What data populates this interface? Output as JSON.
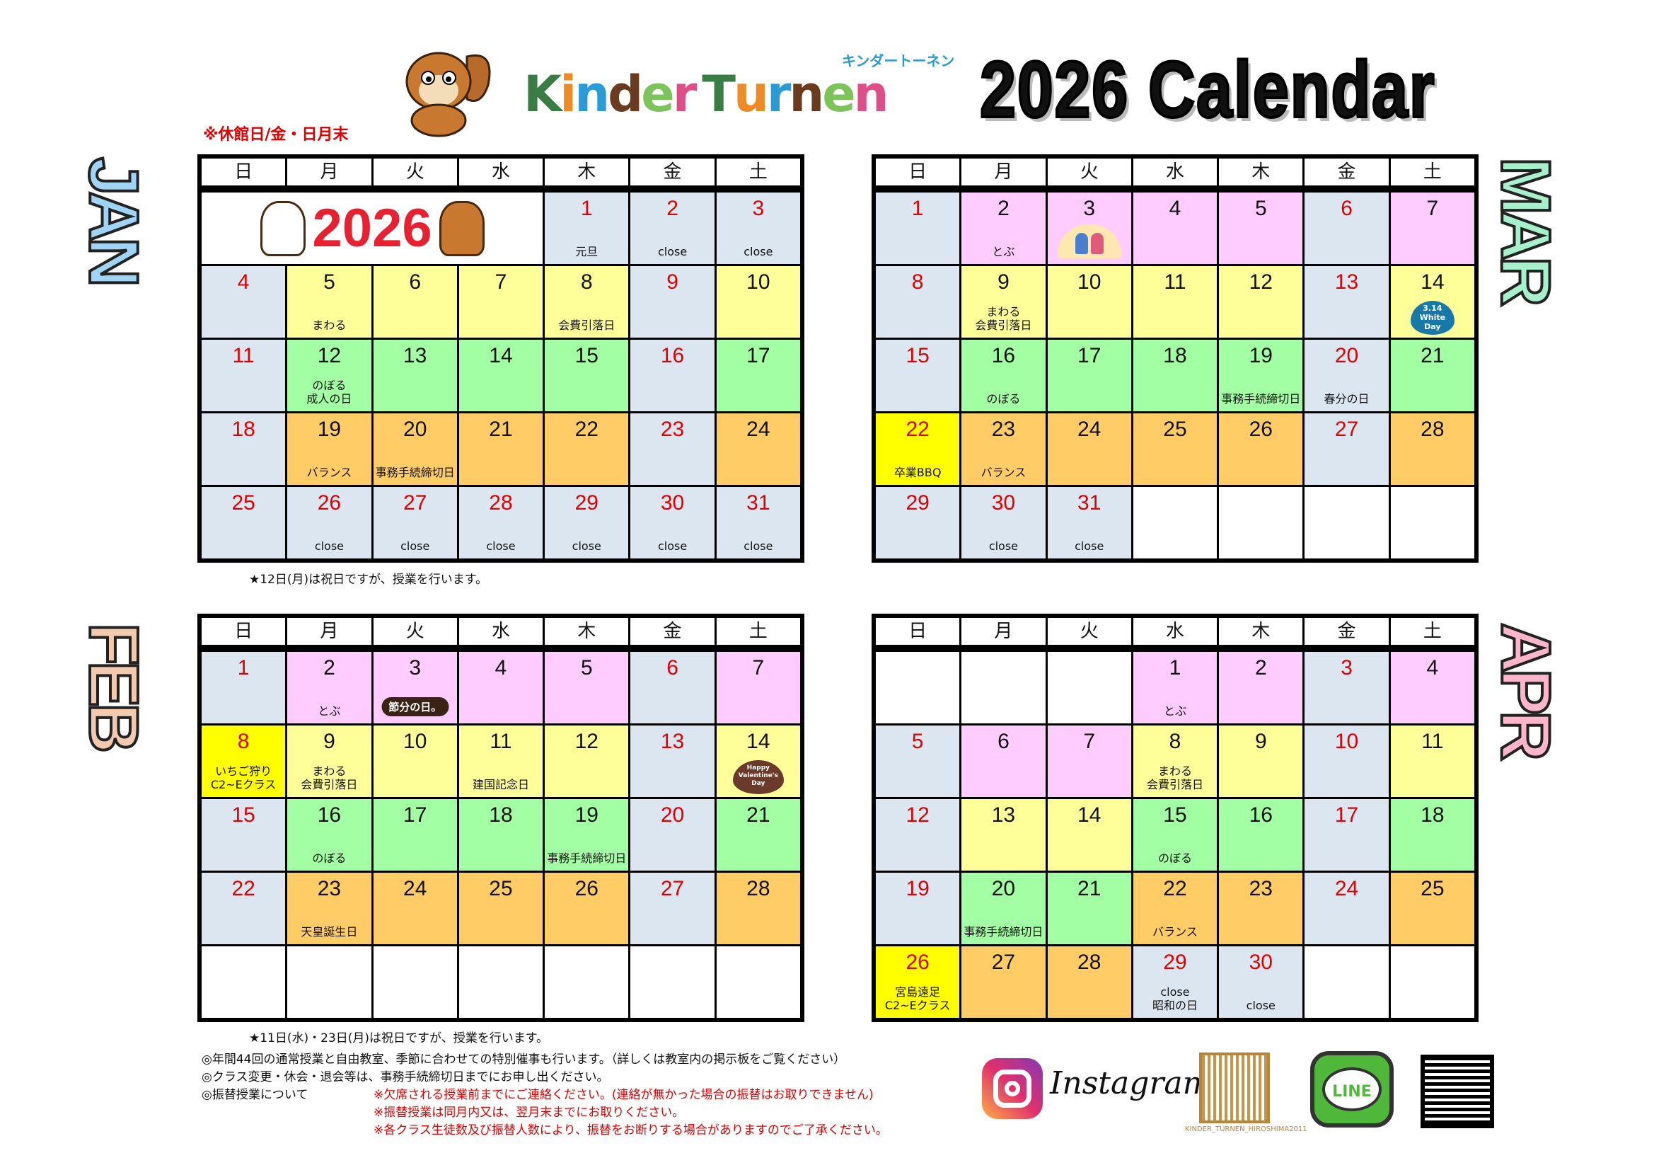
{
  "header": {
    "closed_days": "※休館日/金・日月末",
    "logo": {
      "text": "KinderTurnen",
      "letter_colors": [
        "#3a7d44",
        "#f08a24",
        "#2a9bd6",
        "#6b3b1f",
        "#7cc35a",
        "#e04e8a",
        "#3a7d44",
        "#f08a24",
        "#2a9bd6",
        "#6b3b1f",
        "#7cc35a",
        "#e04e8a"
      ],
      "kana": "キンダートーネン"
    },
    "title": "2026  Calendar"
  },
  "weekdays": [
    "日",
    "月",
    "火",
    "水",
    "木",
    "金",
    "土"
  ],
  "colors": {
    "g": "#dce6f1",
    "y": "#ffff99",
    "gr": "#a3ffa3",
    "o": "#ffcc66",
    "p": "#ffccff",
    "Y": "#ffff00",
    "red": "#e00000"
  },
  "months": [
    {
      "label": "JAN",
      "banner": "2026",
      "footnote": "★12日(月)は祝日ですが、授業を行います。",
      "weeks": [
        [
          {
            "banner": true
          },
          {
            "d": "1",
            "c": "g",
            "r": 1,
            "n": [
              "元旦"
            ]
          },
          {
            "d": "2",
            "c": "g",
            "r": 1,
            "n": [
              "close"
            ]
          },
          {
            "d": "3",
            "c": "g",
            "r": 1,
            "n": [
              "close"
            ]
          }
        ],
        [
          {
            "d": "4",
            "c": "g",
            "r": 1
          },
          {
            "d": "5",
            "c": "y",
            "n": [
              "まわる"
            ]
          },
          {
            "d": "6",
            "c": "y"
          },
          {
            "d": "7",
            "c": "y"
          },
          {
            "d": "8",
            "c": "y",
            "n": [
              "会費引落日"
            ]
          },
          {
            "d": "9",
            "c": "g",
            "r": 1
          },
          {
            "d": "10",
            "c": "y"
          }
        ],
        [
          {
            "d": "11",
            "c": "g",
            "r": 1
          },
          {
            "d": "12",
            "c": "gr",
            "n": [
              "のぼる",
              "成人の日"
            ]
          },
          {
            "d": "13",
            "c": "gr"
          },
          {
            "d": "14",
            "c": "gr"
          },
          {
            "d": "15",
            "c": "gr"
          },
          {
            "d": "16",
            "c": "g",
            "r": 1
          },
          {
            "d": "17",
            "c": "gr"
          }
        ],
        [
          {
            "d": "18",
            "c": "g",
            "r": 1
          },
          {
            "d": "19",
            "c": "o",
            "n": [
              "バランス"
            ]
          },
          {
            "d": "20",
            "c": "o",
            "n": [
              "事務手続締切日"
            ]
          },
          {
            "d": "21",
            "c": "o"
          },
          {
            "d": "22",
            "c": "o"
          },
          {
            "d": "23",
            "c": "g",
            "r": 1
          },
          {
            "d": "24",
            "c": "o"
          }
        ],
        [
          {
            "d": "25",
            "c": "g",
            "r": 1
          },
          {
            "d": "26",
            "c": "g",
            "r": 1,
            "n": [
              "close"
            ]
          },
          {
            "d": "27",
            "c": "g",
            "r": 1,
            "n": [
              "close"
            ]
          },
          {
            "d": "28",
            "c": "g",
            "r": 1,
            "n": [
              "close"
            ]
          },
          {
            "d": "29",
            "c": "g",
            "r": 1,
            "n": [
              "close"
            ]
          },
          {
            "d": "30",
            "c": "g",
            "r": 1,
            "n": [
              "close"
            ]
          },
          {
            "d": "31",
            "c": "g",
            "r": 1,
            "n": [
              "close"
            ]
          }
        ]
      ]
    },
    {
      "label": "MAR",
      "footnote": "",
      "weeks": [
        [
          {
            "d": "1",
            "c": "g",
            "r": 1
          },
          {
            "d": "2",
            "c": "p",
            "n": [
              "とぶ"
            ]
          },
          {
            "d": "3",
            "c": "p",
            "badge": "hina"
          },
          {
            "d": "4",
            "c": "p"
          },
          {
            "d": "5",
            "c": "p"
          },
          {
            "d": "6",
            "c": "g",
            "r": 1
          },
          {
            "d": "7",
            "c": "p"
          }
        ],
        [
          {
            "d": "8",
            "c": "g",
            "r": 1
          },
          {
            "d": "9",
            "c": "y",
            "n": [
              "まわる",
              "会費引落日"
            ]
          },
          {
            "d": "10",
            "c": "y"
          },
          {
            "d": "11",
            "c": "y"
          },
          {
            "d": "12",
            "c": "y"
          },
          {
            "d": "13",
            "c": "g",
            "r": 1
          },
          {
            "d": "14",
            "c": "y",
            "badge": "white",
            "badge_text": "3.14 White Day"
          }
        ],
        [
          {
            "d": "15",
            "c": "g",
            "r": 1
          },
          {
            "d": "16",
            "c": "gr",
            "n": [
              "のぼる"
            ]
          },
          {
            "d": "17",
            "c": "gr"
          },
          {
            "d": "18",
            "c": "gr"
          },
          {
            "d": "19",
            "c": "gr",
            "n": [
              "事務手続締切日"
            ]
          },
          {
            "d": "20",
            "c": "g",
            "r": 1,
            "n": [
              "春分の日"
            ]
          },
          {
            "d": "21",
            "c": "gr"
          }
        ],
        [
          {
            "d": "22",
            "c": "Y",
            "r": 1,
            "n": [
              "卒業BBQ"
            ]
          },
          {
            "d": "23",
            "c": "o",
            "n": [
              "バランス"
            ]
          },
          {
            "d": "24",
            "c": "o"
          },
          {
            "d": "25",
            "c": "o"
          },
          {
            "d": "26",
            "c": "o"
          },
          {
            "d": "27",
            "c": "g",
            "r": 1
          },
          {
            "d": "28",
            "c": "o"
          }
        ],
        [
          {
            "d": "29",
            "c": "g",
            "r": 1
          },
          {
            "d": "30",
            "c": "g",
            "r": 1,
            "n": [
              "close"
            ]
          },
          {
            "d": "31",
            "c": "g",
            "r": 1,
            "n": [
              "close"
            ]
          },
          {
            "c": "w"
          },
          {
            "c": "w"
          },
          {
            "c": "w"
          },
          {
            "c": "w"
          }
        ]
      ]
    },
    {
      "label": "FEB",
      "footnote": "★11日(水)・23日(月)は祝日ですが、授業を行います。",
      "weeks": [
        [
          {
            "d": "1",
            "c": "g",
            "r": 1
          },
          {
            "d": "2",
            "c": "p",
            "n": [
              "とぶ"
            ]
          },
          {
            "d": "3",
            "c": "p",
            "badge": "setsubun",
            "badge_text": "節分の日。"
          },
          {
            "d": "4",
            "c": "p"
          },
          {
            "d": "5",
            "c": "p"
          },
          {
            "d": "6",
            "c": "g",
            "r": 1
          },
          {
            "d": "7",
            "c": "p"
          }
        ],
        [
          {
            "d": "8",
            "c": "Y",
            "r": 1,
            "n": [
              "いちご狩り",
              "C2~Eクラス"
            ]
          },
          {
            "d": "9",
            "c": "y",
            "n": [
              "まわる",
              "会費引落日"
            ]
          },
          {
            "d": "10",
            "c": "y"
          },
          {
            "d": "11",
            "c": "y",
            "n": [
              "建国記念日"
            ]
          },
          {
            "d": "12",
            "c": "y"
          },
          {
            "d": "13",
            "c": "g",
            "r": 1
          },
          {
            "d": "14",
            "c": "y",
            "badge": "val",
            "badge_text": "Happy Valentine's Day"
          }
        ],
        [
          {
            "d": "15",
            "c": "g",
            "r": 1
          },
          {
            "d": "16",
            "c": "gr",
            "n": [
              "のぼる"
            ]
          },
          {
            "d": "17",
            "c": "gr"
          },
          {
            "d": "18",
            "c": "gr"
          },
          {
            "d": "19",
            "c": "gr",
            "n": [
              "事務手続締切日"
            ]
          },
          {
            "d": "20",
            "c": "g",
            "r": 1
          },
          {
            "d": "21",
            "c": "gr"
          }
        ],
        [
          {
            "d": "22",
            "c": "g",
            "r": 1
          },
          {
            "d": "23",
            "c": "o",
            "n": [
              "天皇誕生日"
            ]
          },
          {
            "d": "24",
            "c": "o"
          },
          {
            "d": "25",
            "c": "o"
          },
          {
            "d": "26",
            "c": "o"
          },
          {
            "d": "27",
            "c": "g",
            "r": 1
          },
          {
            "d": "28",
            "c": "o"
          }
        ],
        [
          {
            "c": "w"
          },
          {
            "c": "w"
          },
          {
            "c": "w"
          },
          {
            "c": "w"
          },
          {
            "c": "w"
          },
          {
            "c": "w"
          },
          {
            "c": "w"
          }
        ]
      ]
    },
    {
      "label": "APR",
      "footnote": "",
      "weeks": [
        [
          {
            "c": "w"
          },
          {
            "c": "w"
          },
          {
            "c": "w"
          },
          {
            "d": "1",
            "c": "p",
            "n": [
              "とぶ"
            ]
          },
          {
            "d": "2",
            "c": "p"
          },
          {
            "d": "3",
            "c": "g",
            "r": 1
          },
          {
            "d": "4",
            "c": "p"
          }
        ],
        [
          {
            "d": "5",
            "c": "g",
            "r": 1
          },
          {
            "d": "6",
            "c": "p"
          },
          {
            "d": "7",
            "c": "p"
          },
          {
            "d": "8",
            "c": "y",
            "n": [
              "まわる",
              "会費引落日"
            ]
          },
          {
            "d": "9",
            "c": "y"
          },
          {
            "d": "10",
            "c": "g",
            "r": 1
          },
          {
            "d": "11",
            "c": "y"
          }
        ],
        [
          {
            "d": "12",
            "c": "g",
            "r": 1
          },
          {
            "d": "13",
            "c": "y"
          },
          {
            "d": "14",
            "c": "y"
          },
          {
            "d": "15",
            "c": "gr",
            "n": [
              "のぼる"
            ]
          },
          {
            "d": "16",
            "c": "gr"
          },
          {
            "d": "17",
            "c": "g",
            "r": 1
          },
          {
            "d": "18",
            "c": "gr"
          }
        ],
        [
          {
            "d": "19",
            "c": "g",
            "r": 1
          },
          {
            "d": "20",
            "c": "gr",
            "n": [
              "事務手続締切日"
            ]
          },
          {
            "d": "21",
            "c": "gr"
          },
          {
            "d": "22",
            "c": "o",
            "n": [
              "バランス"
            ]
          },
          {
            "d": "23",
            "c": "o"
          },
          {
            "d": "24",
            "c": "g",
            "r": 1
          },
          {
            "d": "25",
            "c": "o"
          }
        ],
        [
          {
            "d": "26",
            "c": "Y",
            "r": 1,
            "n": [
              "宮島遠足",
              "C2~Eクラス"
            ]
          },
          {
            "d": "27",
            "c": "o"
          },
          {
            "d": "28",
            "c": "o"
          },
          {
            "d": "29",
            "c": "g",
            "r": 1,
            "n": [
              "close",
              "昭和の日"
            ]
          },
          {
            "d": "30",
            "c": "g",
            "r": 1,
            "n": [
              "close"
            ]
          },
          {
            "c": "w"
          },
          {
            "c": "w"
          }
        ]
      ]
    }
  ],
  "notes": {
    "line1": "◎年間44回の通常授業と自由教室、季節に合わせての特別催事も行います。（詳しくは教室内の掲示板をご覧ください）",
    "line2": "◎クラス変更・休会・退会等は、事務手続締切日までにお申し出ください。",
    "line3": "◎振替授業について",
    "red": [
      "※欠席される授業前までにご連絡ください。(連絡が無かった場合の振替はお取りできません)",
      "※振替授業は同月内又は、翌月末までにお取りください。",
      "※各クラス生徒数及び振替人数により、振替をお断りする場合がありますのでご了承ください。"
    ]
  },
  "social": {
    "instagram": "Instagram",
    "instagram_handle": "KINDER_TURNEN_HIROSHIMA2011",
    "line": "LINE"
  }
}
